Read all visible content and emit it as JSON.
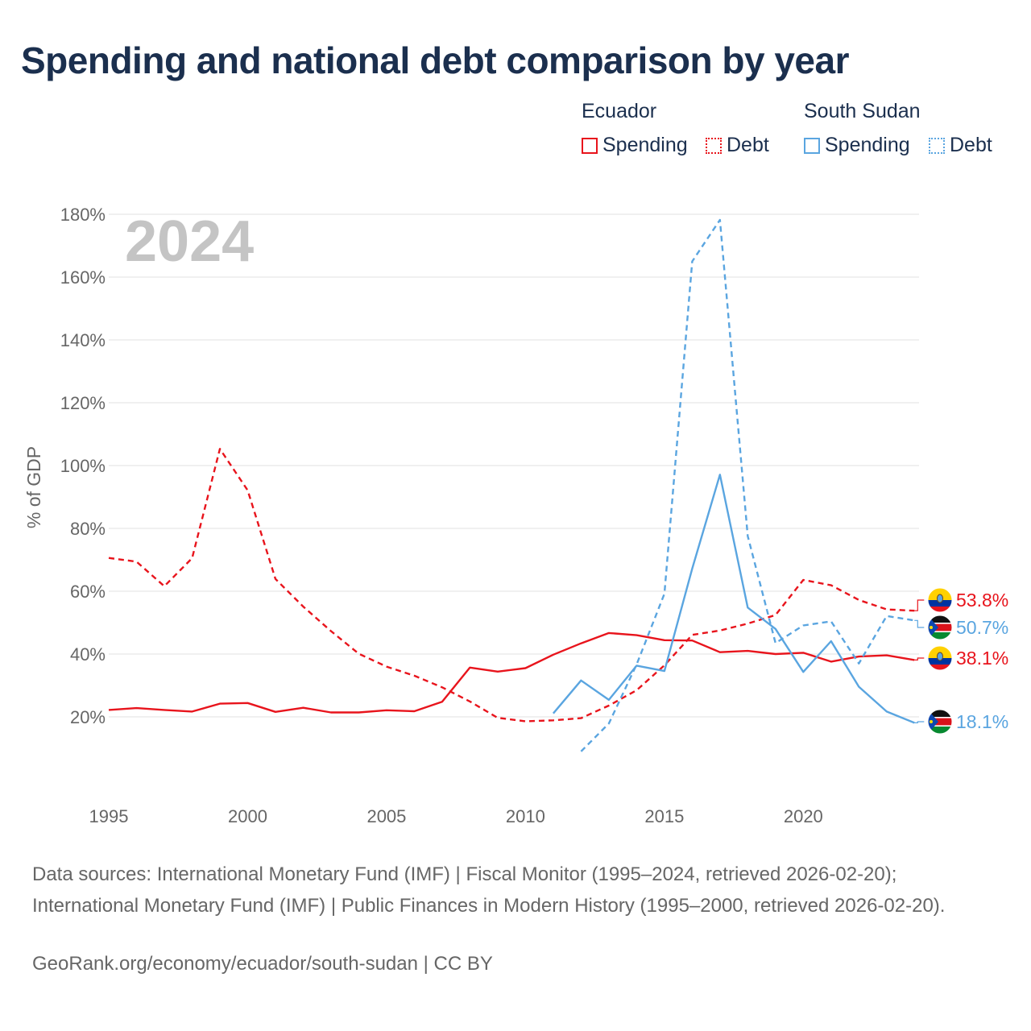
{
  "title": "Spending and national debt comparison by year",
  "legend": {
    "ecuador": {
      "name": "Ecuador",
      "spending": "Spending",
      "debt": "Debt"
    },
    "south_sudan": {
      "name": "South Sudan",
      "spending": "Spending",
      "debt": "Debt"
    }
  },
  "year_label": "2024",
  "colors": {
    "ecuador": "#e8141c",
    "south_sudan": "#5aa5e0",
    "grid": "#e6e6e6",
    "axis_text": "#666666"
  },
  "footer": {
    "sources": "Data sources: International Monetary Fund (IMF) | Fiscal Monitor (1995–2024, retrieved 2026-02-20); International Monetary Fund (IMF) | Public Finances in Modern History (1995–2000, retrieved 2026-02-20).",
    "credit": "GeoRank.org/economy/ecuador/south-sudan | CC BY"
  },
  "chart_data": {
    "type": "line",
    "title": "Spending and national debt comparison by year",
    "xlabel": "",
    "ylabel": "% of GDP",
    "xlim": [
      1995,
      2024
    ],
    "ylim": [
      0,
      180
    ],
    "x_ticks": [
      1995,
      2000,
      2005,
      2010,
      2015,
      2020
    ],
    "y_ticks": [
      20,
      40,
      60,
      80,
      100,
      120,
      140,
      160,
      180
    ],
    "y_tick_labels": [
      "20%",
      "40%",
      "60%",
      "80%",
      "100%",
      "120%",
      "140%",
      "160%",
      "180%"
    ],
    "grid": true,
    "series": [
      {
        "name": "Ecuador Spending",
        "country": "ecuador",
        "style": "solid",
        "x": [
          1995,
          1996,
          1997,
          1998,
          1999,
          2000,
          2001,
          2002,
          2003,
          2004,
          2005,
          2006,
          2007,
          2008,
          2009,
          2010,
          2011,
          2012,
          2013,
          2014,
          2015,
          2016,
          2017,
          2018,
          2019,
          2020,
          2021,
          2022,
          2023,
          2024
        ],
        "values": [
          22.2,
          22.8,
          22.2,
          21.7,
          24.2,
          24.4,
          21.6,
          22.9,
          21.4,
          21.4,
          22.1,
          21.8,
          24.8,
          35.7,
          34.4,
          35.5,
          39.8,
          43.4,
          46.7,
          46.0,
          44.4,
          44.3,
          40.6,
          41.0,
          40.0,
          40.4,
          37.6,
          39.2,
          39.6,
          38.1
        ],
        "end_label": "38.1%"
      },
      {
        "name": "Ecuador Debt",
        "country": "ecuador",
        "style": "dashed",
        "x": [
          1995,
          1996,
          1997,
          1998,
          1999,
          2000,
          2001,
          2002,
          2003,
          2004,
          2005,
          2006,
          2007,
          2008,
          2009,
          2010,
          2011,
          2012,
          2013,
          2014,
          2015,
          2016,
          2017,
          2018,
          2019,
          2020,
          2021,
          2022,
          2023,
          2024
        ],
        "values": [
          70.6,
          69.4,
          61.6,
          70.5,
          105.3,
          92.1,
          63.9,
          55.1,
          47.3,
          40.1,
          36.0,
          33.1,
          29.4,
          24.9,
          19.7,
          18.6,
          18.9,
          19.6,
          23.6,
          28.5,
          36.4,
          46.1,
          47.5,
          49.7,
          52.4,
          63.6,
          61.9,
          57.2,
          54.2,
          53.8
        ],
        "end_label": "53.8%"
      },
      {
        "name": "South Sudan Spending",
        "country": "south_sudan",
        "style": "solid",
        "x": [
          2011,
          2012,
          2013,
          2014,
          2015,
          2016,
          2017,
          2018,
          2019,
          2020,
          2021,
          2022,
          2023,
          2024
        ],
        "values": [
          21.1,
          31.6,
          25.4,
          36.3,
          34.6,
          67.2,
          97.1,
          54.8,
          48.0,
          34.3,
          44.1,
          29.6,
          21.7,
          18.1
        ],
        "end_label": "18.1%"
      },
      {
        "name": "South Sudan Debt",
        "country": "south_sudan",
        "style": "dashed",
        "x": [
          2012,
          2013,
          2014,
          2015,
          2016,
          2017,
          2018,
          2019,
          2020,
          2021,
          2022,
          2023,
          2024
        ],
        "values": [
          9.0,
          17.9,
          36.7,
          59.2,
          165.0,
          178.2,
          77.6,
          43.5,
          49.1,
          50.4,
          37.0,
          52.1,
          50.7
        ],
        "end_label": "50.7%"
      }
    ]
  }
}
